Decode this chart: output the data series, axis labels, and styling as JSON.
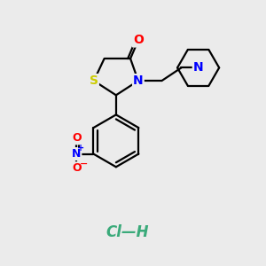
{
  "bg_color": "#ebebeb",
  "atom_colors": {
    "S": "#cccc00",
    "N": "#0000ff",
    "O": "#ff0000",
    "C": "#000000",
    "Cl": "#00cc00",
    "H": "#000000"
  },
  "bond_color": "#000000",
  "hcl_color": "#3aaa7a",
  "bond_lw": 1.6,
  "font_size": 10,
  "fig_w": 3.0,
  "fig_h": 3.0
}
